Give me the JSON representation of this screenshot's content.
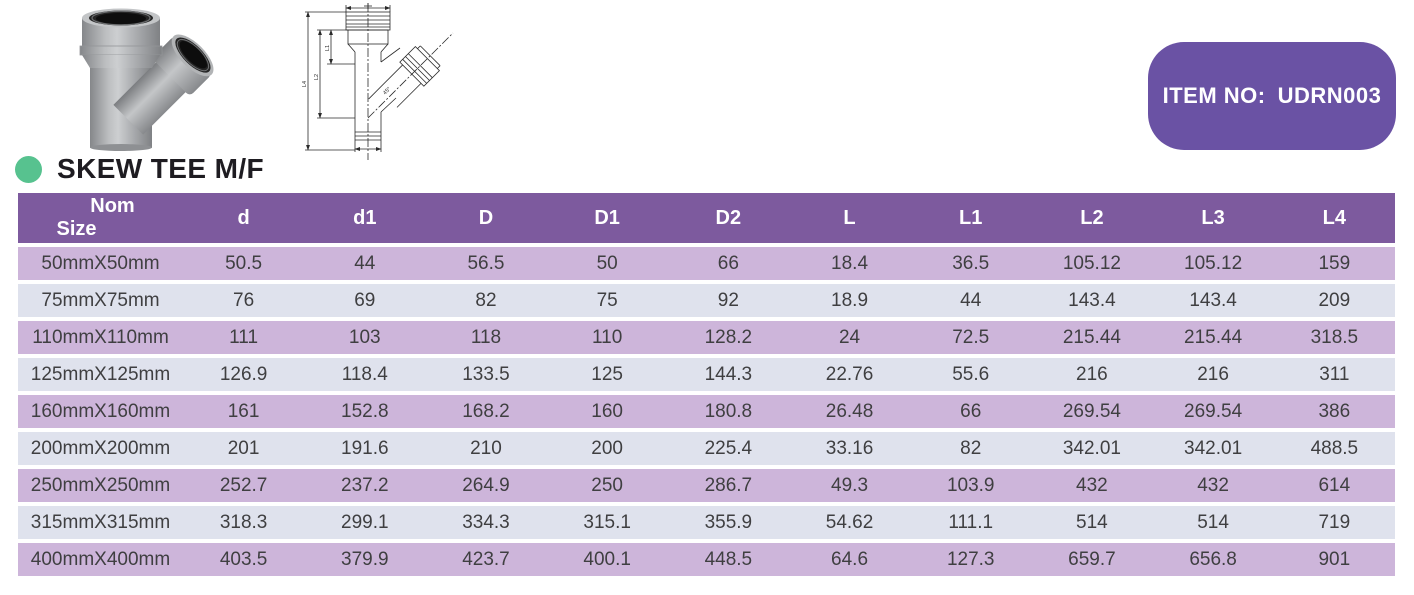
{
  "item_badge": {
    "label": "ITEM NO:",
    "value": "UDRN003"
  },
  "section": {
    "title": "SKEW TEE M/F"
  },
  "colors": {
    "badge_purple": "#6a52a4",
    "header_purple": "#7d5a9e",
    "row_lavender": "#cdb5da",
    "row_blue": "#dfe2ed",
    "bullet_green": "#57c28f",
    "title_text": "#1e1c21",
    "cell_text": "#3f3f41"
  },
  "drawing": {
    "labels": {
      "l1": "L1",
      "l2": "L2",
      "l4": "L4",
      "angle": "45°"
    }
  },
  "table": {
    "columns": [
      {
        "id": "nom-size",
        "label": "Nom Size",
        "line1": "Nom",
        "line2": "Size"
      },
      {
        "id": "d",
        "label": "d"
      },
      {
        "id": "d1",
        "label": "d1"
      },
      {
        "id": "D",
        "label": "D"
      },
      {
        "id": "D1",
        "label": "D1"
      },
      {
        "id": "D2",
        "label": "D2"
      },
      {
        "id": "L",
        "label": "L"
      },
      {
        "id": "L1",
        "label": "L1"
      },
      {
        "id": "L2",
        "label": "L2"
      },
      {
        "id": "L3",
        "label": "L3"
      },
      {
        "id": "L4",
        "label": "L4"
      }
    ],
    "rows": [
      {
        "size": "50mmX50mm",
        "values": [
          "50.5",
          "44",
          "56.5",
          "50",
          "66",
          "18.4",
          "36.5",
          "105.12",
          "105.12",
          "159"
        ]
      },
      {
        "size": "75mmX75mm",
        "values": [
          "76",
          "69",
          "82",
          "75",
          "92",
          "18.9",
          "44",
          "143.4",
          "143.4",
          "209"
        ]
      },
      {
        "size": "110mmX110mm",
        "values": [
          "111",
          "103",
          "118",
          "110",
          "128.2",
          "24",
          "72.5",
          "215.44",
          "215.44",
          "318.5"
        ]
      },
      {
        "size": "125mmX125mm",
        "values": [
          "126.9",
          "118.4",
          "133.5",
          "125",
          "144.3",
          "22.76",
          "55.6",
          "216",
          "216",
          "311"
        ]
      },
      {
        "size": "160mmX160mm",
        "values": [
          "161",
          "152.8",
          "168.2",
          "160",
          "180.8",
          "26.48",
          "66",
          "269.54",
          "269.54",
          "386"
        ]
      },
      {
        "size": "200mmX200mm",
        "values": [
          "201",
          "191.6",
          "210",
          "200",
          "225.4",
          "33.16",
          "82",
          "342.01",
          "342.01",
          "488.5"
        ]
      },
      {
        "size": "250mmX250mm",
        "values": [
          "252.7",
          "237.2",
          "264.9",
          "250",
          "286.7",
          "49.3",
          "103.9",
          "432",
          "432",
          "614"
        ]
      },
      {
        "size": "315mmX315mm",
        "values": [
          "318.3",
          "299.1",
          "334.3",
          "315.1",
          "355.9",
          "54.62",
          "111.1",
          "514",
          "514",
          "719"
        ]
      },
      {
        "size": "400mmX400mm",
        "values": [
          "403.5",
          "379.9",
          "423.7",
          "400.1",
          "448.5",
          "64.6",
          "127.3",
          "659.7",
          "656.8",
          "901"
        ]
      }
    ]
  }
}
